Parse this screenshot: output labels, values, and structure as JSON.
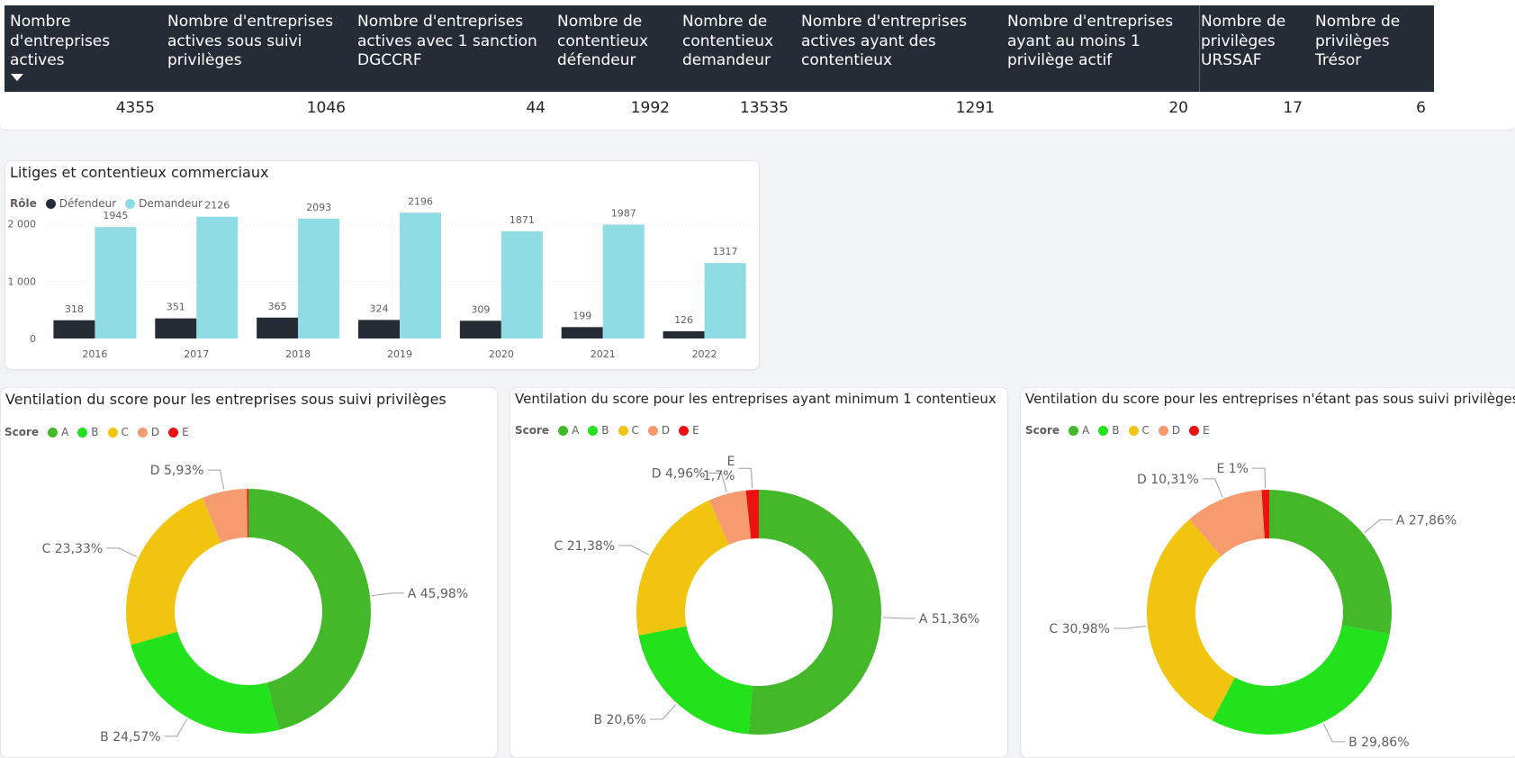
{
  "kpi_table": {
    "columns": [
      {
        "header": "Nombre\nd'entreprises\nactives",
        "value": "4355"
      },
      {
        "header": "Nombre d'entreprises\nactives sous suivi\nprivilèges",
        "value": "1046"
      },
      {
        "header": "Nombre d'entreprises\nactives avec 1 sanction\nDGCCRF",
        "value": "44"
      },
      {
        "header": "Nombre de\ncontentieux\ndéfendeur",
        "value": "1992"
      },
      {
        "header": "Nombre de\ncontentieux\ndemandeur",
        "value": "13535"
      },
      {
        "header": "Nombre d'entreprises\nactives ayant des\ncontentieux",
        "value": "1291"
      },
      {
        "header": "Nombre d'entreprises\nayant au moins 1\nprivilège actif",
        "value": "20"
      },
      {
        "header": "Nombre de\nprivilèges\nURSSAF",
        "value": "17"
      },
      {
        "header": "Nombre de\nprivilèges\nTrésor",
        "value": "6"
      }
    ]
  },
  "colors": {
    "defendeur": "#252c36",
    "demandeur": "#8fdce4",
    "score_A": "#43b929",
    "score_B": "#22e21b",
    "score_C": "#f1c40f",
    "score_D": "#f59b6e",
    "score_E": "#ee1111"
  },
  "chart_data": [
    {
      "type": "bar",
      "title": "Litiges et contentieux commerciaux",
      "legend_title": "Rôle",
      "categories": [
        "2016",
        "2017",
        "2018",
        "2019",
        "2020",
        "2021",
        "2022"
      ],
      "series": [
        {
          "name": "Défendeur",
          "values": [
            318,
            351,
            365,
            324,
            309,
            199,
            126
          ]
        },
        {
          "name": "Demandeur",
          "values": [
            1945,
            2126,
            2093,
            2196,
            1871,
            1987,
            1317
          ]
        }
      ],
      "ylim": [
        0,
        2200
      ],
      "yticks": [
        {
          "value": 0,
          "label": "0"
        },
        {
          "value": 1000,
          "label": "1 000"
        },
        {
          "value": 2000,
          "label": "2 000"
        }
      ],
      "grid": true,
      "legend_position": "top-left"
    },
    {
      "type": "pie",
      "title": "Ventilation du score pour les entreprises sous suivi privilèges",
      "legend_title": "Score",
      "categories": [
        "A",
        "B",
        "C",
        "D",
        "E"
      ],
      "values": [
        45.98,
        24.57,
        23.33,
        5.93,
        0.19
      ],
      "labels": [
        "A 45,98%",
        "B 24,57%",
        "C 23,33%",
        "D 5,93%",
        ""
      ],
      "donut": true
    },
    {
      "type": "pie",
      "title": "Ventilation du score pour les entreprises ayant minimum 1 contentieux",
      "legend_title": "Score",
      "categories": [
        "A",
        "B",
        "C",
        "D",
        "E"
      ],
      "values": [
        51.36,
        20.6,
        21.38,
        4.96,
        1.7
      ],
      "labels": [
        "A 51,36%",
        "B 20,6%",
        "C 21,38%",
        "D 4,96%",
        "E\n1,7%"
      ],
      "donut": true
    },
    {
      "type": "pie",
      "title": "Ventilation du score pour les entreprises n'étant pas sous suivi privilèges",
      "legend_title": "Score",
      "categories": [
        "A",
        "B",
        "C",
        "D",
        "E"
      ],
      "values": [
        27.86,
        29.86,
        30.98,
        10.31,
        1.0
      ],
      "labels": [
        "A 27,86%",
        "B 29,86%",
        "C 30,98%",
        "D 10,31%",
        "E 1%"
      ],
      "donut": true
    }
  ]
}
